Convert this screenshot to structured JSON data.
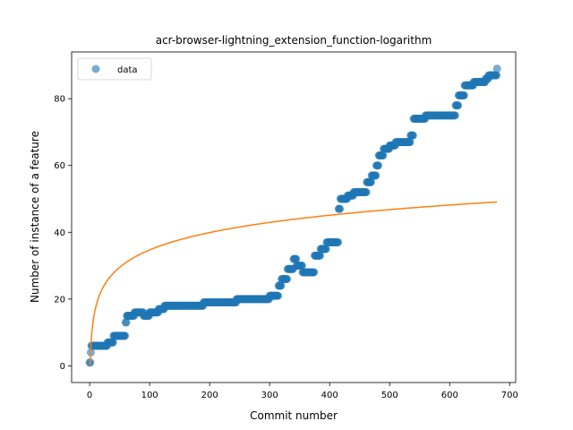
{
  "chart_data": {
    "type": "scatter",
    "title": "acr-browser-lightning_extension_function-logarithm",
    "xlabel": "Commit number",
    "ylabel": "Number of instance of a feature",
    "xlim": [
      -30,
      710
    ],
    "ylim": [
      -5,
      94
    ],
    "xticks": [
      0,
      100,
      200,
      300,
      400,
      500,
      600,
      700
    ],
    "yticks": [
      0,
      20,
      40,
      60,
      80
    ],
    "grid": false,
    "legend": {
      "position": "top-left",
      "entries": [
        "data"
      ]
    },
    "colors": {
      "data": "#1f77b4",
      "fit": "#ff7f0e"
    },
    "series": [
      {
        "name": "data",
        "kind": "scatter",
        "steps": [
          [
            0,
            1
          ],
          [
            2,
            4
          ],
          [
            3,
            6
          ],
          [
            30,
            7
          ],
          [
            40,
            9
          ],
          [
            60,
            13
          ],
          [
            62,
            15
          ],
          [
            75,
            16
          ],
          [
            90,
            15
          ],
          [
            100,
            16
          ],
          [
            115,
            17
          ],
          [
            125,
            18
          ],
          [
            190,
            19
          ],
          [
            245,
            20
          ],
          [
            300,
            21
          ],
          [
            315,
            24
          ],
          [
            320,
            26
          ],
          [
            330,
            29
          ],
          [
            340,
            32
          ],
          [
            345,
            30
          ],
          [
            355,
            28
          ],
          [
            375,
            33
          ],
          [
            385,
            35
          ],
          [
            395,
            37
          ],
          [
            415,
            47
          ],
          [
            418,
            50
          ],
          [
            430,
            51
          ],
          [
            440,
            52
          ],
          [
            462,
            55
          ],
          [
            470,
            57
          ],
          [
            478,
            60
          ],
          [
            482,
            63
          ],
          [
            490,
            65
          ],
          [
            500,
            66
          ],
          [
            510,
            67
          ],
          [
            535,
            69
          ],
          [
            540,
            74
          ],
          [
            560,
            75
          ],
          [
            610,
            78
          ],
          [
            615,
            81
          ],
          [
            625,
            84
          ],
          [
            640,
            85
          ],
          [
            660,
            86
          ],
          [
            665,
            87
          ],
          [
            679,
            89
          ]
        ]
      },
      {
        "name": "",
        "kind": "line",
        "formula": "a + b*ln(x)",
        "a": 0.17,
        "b": 7.5,
        "x_range": [
          1,
          679
        ]
      }
    ]
  }
}
